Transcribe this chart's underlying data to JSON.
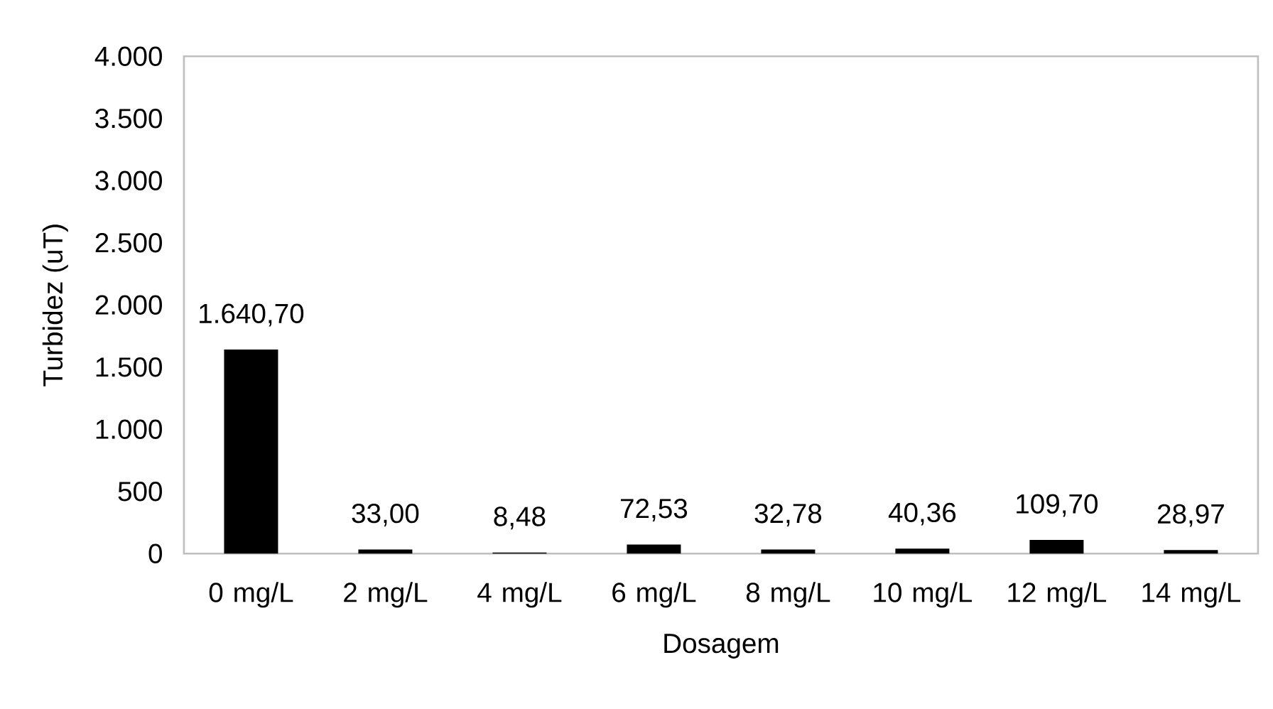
{
  "chart_data": {
    "type": "bar",
    "xlabel": "Dosagem",
    "ylabel": "Turbidez (uT)",
    "categories": [
      "0 mg/L",
      "2 mg/L",
      "4 mg/L",
      "6 mg/L",
      "8 mg/L",
      "10 mg/L",
      "12 mg/L",
      "14 mg/L"
    ],
    "values": [
      1640.7,
      33.0,
      8.48,
      72.53,
      32.78,
      40.36,
      109.7,
      28.97
    ],
    "value_labels": [
      "1.640,70",
      "33,00",
      "8,48",
      "72,53",
      "32,78",
      "40,36",
      "109,70",
      "28,97"
    ],
    "color": "#000000",
    "ylim": [
      0,
      4000
    ],
    "yticks": [
      0,
      500,
      {
        "value": 1000,
        "label": "1.000"
      },
      {
        "value": 1500,
        "label": "1.500"
      },
      {
        "value": 2000,
        "label": "2.000"
      },
      {
        "value": 2500,
        "label": "2.500"
      },
      {
        "value": 3000,
        "label": "3.000"
      },
      {
        "value": 3500,
        "label": "3.500"
      },
      {
        "value": 4000,
        "label": "4.000"
      }
    ]
  }
}
